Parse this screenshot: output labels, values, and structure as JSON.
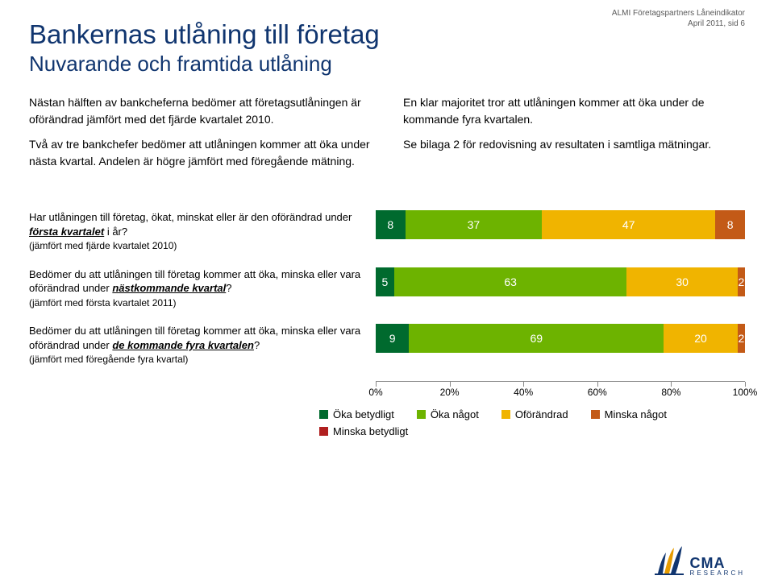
{
  "header_note": {
    "line1": "ALMI Företagspartners Låneindikator",
    "line2": "April 2011, sid 6"
  },
  "title": "Bankernas utlåning till företag",
  "subtitle": "Nuvarande och framtida utlåning",
  "col_left": {
    "p1": "Nästan hälften av bankcheferna bedömer att företagsutlåningen är oförändrad jämfört med det fjärde kvartalet 2010.",
    "p2": "Två av tre bankchefer bedömer att utlåningen kommer att öka under nästa kvartal. Andelen är högre jämfört med föregående mätning."
  },
  "col_right": {
    "p1": "En klar majoritet tror att utlåningen kommer att öka under de kommande fyra kvartalen.",
    "p2": "Se bilaga 2 för redovisning av resultaten i samtliga mätningar."
  },
  "chart": {
    "rows": [
      {
        "label_pre": "Har utlåningen till företag, ökat, minskat eller är den oförändrad under ",
        "label_underline": "första kvartalet",
        "label_post": " i år? ",
        "label_compare": "(jämfört med fjärde kvartalet 2010)",
        "segments": [
          {
            "value": 8,
            "color": "#006a2e",
            "show": true
          },
          {
            "value": 37,
            "color": "#6db300",
            "show": true
          },
          {
            "value": 47,
            "color": "#f0b400",
            "show": true
          },
          {
            "value": 8,
            "color": "#c35a17",
            "show": true
          },
          {
            "value": 0,
            "color": "#b01f1f",
            "show": false
          }
        ]
      },
      {
        "label_pre": "Bedömer du att utlåningen till företag kommer att öka, minska eller vara oförändrad under ",
        "label_underline": "nästkommande kvartal",
        "label_post": "?",
        "label_compare": "(jämfört med första kvartalet 2011)",
        "segments": [
          {
            "value": 5,
            "color": "#006a2e",
            "show": true
          },
          {
            "value": 63,
            "color": "#6db300",
            "show": true
          },
          {
            "value": 30,
            "color": "#f0b400",
            "show": true
          },
          {
            "value": 2,
            "color": "#c35a17",
            "show": true
          },
          {
            "value": 0,
            "color": "#b01f1f",
            "show": false
          }
        ]
      },
      {
        "label_pre": "Bedömer du att utlåningen till företag kommer att öka, minska eller vara oförändrad under ",
        "label_underline": "de kommande fyra kvartalen",
        "label_post": "?",
        "label_compare": "(jämfört med föregående fyra kvartal)",
        "segments": [
          {
            "value": 9,
            "color": "#006a2e",
            "show": true
          },
          {
            "value": 69,
            "color": "#6db300",
            "show": true
          },
          {
            "value": 20,
            "color": "#f0b400",
            "show": true
          },
          {
            "value": 2,
            "color": "#c35a17",
            "show": true
          },
          {
            "value": 0,
            "color": "#b01f1f",
            "show": false
          }
        ]
      }
    ],
    "axis": {
      "ticks": [
        0,
        20,
        40,
        60,
        80,
        100
      ],
      "labels": [
        "0%",
        "20%",
        "40%",
        "60%",
        "80%",
        "100%"
      ]
    },
    "legend": [
      {
        "label": "Öka betydligt",
        "color": "#006a2e"
      },
      {
        "label": "Öka något",
        "color": "#6db300"
      },
      {
        "label": "Oförändrad",
        "color": "#f0b400"
      },
      {
        "label": "Minska något",
        "color": "#c35a17"
      },
      {
        "label": "Minska betydligt",
        "color": "#b01f1f"
      }
    ]
  },
  "logo": {
    "cma": "CMA",
    "research": "RESEARCH"
  }
}
